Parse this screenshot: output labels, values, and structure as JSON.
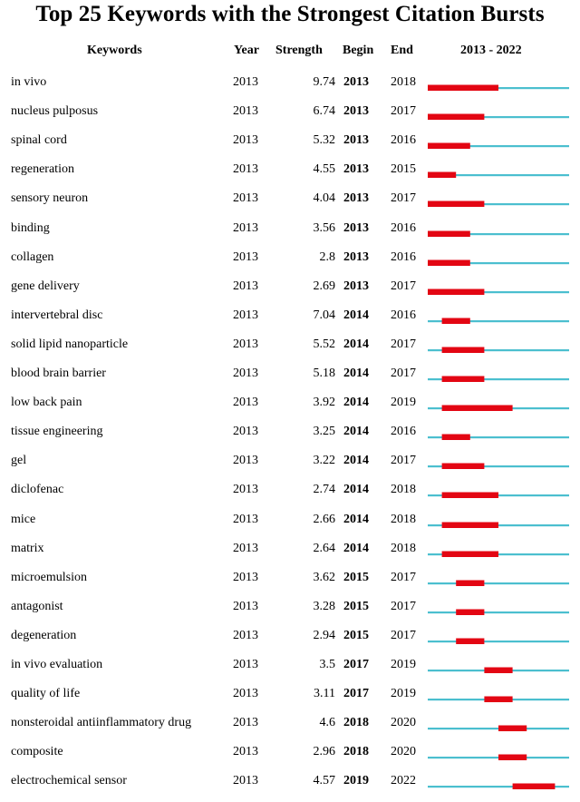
{
  "chart_data": {
    "type": "table",
    "title": "Top 25 Keywords with the Strongest Citation Bursts",
    "columns": [
      "Keywords",
      "Year",
      "Strength",
      "Begin",
      "End",
      "2013 - 2022"
    ],
    "range": [
      2013,
      2022
    ],
    "colors": {
      "burst": "#e30613",
      "baseline": "#4bbfcf"
    },
    "rows": [
      {
        "keyword": "in vivo",
        "year": "2013",
        "strength": "9.74",
        "begin": "2013",
        "end": "2018"
      },
      {
        "keyword": "nucleus pulposus",
        "year": "2013",
        "strength": "6.74",
        "begin": "2013",
        "end": "2017"
      },
      {
        "keyword": "spinal cord",
        "year": "2013",
        "strength": "5.32",
        "begin": "2013",
        "end": "2016"
      },
      {
        "keyword": "regeneration",
        "year": "2013",
        "strength": "4.55",
        "begin": "2013",
        "end": "2015"
      },
      {
        "keyword": "sensory neuron",
        "year": "2013",
        "strength": "4.04",
        "begin": "2013",
        "end": "2017"
      },
      {
        "keyword": "binding",
        "year": "2013",
        "strength": "3.56",
        "begin": "2013",
        "end": "2016"
      },
      {
        "keyword": "collagen",
        "year": "2013",
        "strength": "2.8",
        "begin": "2013",
        "end": "2016"
      },
      {
        "keyword": "gene delivery",
        "year": "2013",
        "strength": "2.69",
        "begin": "2013",
        "end": "2017"
      },
      {
        "keyword": "intervertebral disc",
        "year": "2013",
        "strength": "7.04",
        "begin": "2014",
        "end": "2016"
      },
      {
        "keyword": "solid lipid nanoparticle",
        "year": "2013",
        "strength": "5.52",
        "begin": "2014",
        "end": "2017"
      },
      {
        "keyword": "blood brain barrier",
        "year": "2013",
        "strength": "5.18",
        "begin": "2014",
        "end": "2017"
      },
      {
        "keyword": "low back pain",
        "year": "2013",
        "strength": "3.92",
        "begin": "2014",
        "end": "2019"
      },
      {
        "keyword": "tissue engineering",
        "year": "2013",
        "strength": "3.25",
        "begin": "2014",
        "end": "2016"
      },
      {
        "keyword": "gel",
        "year": "2013",
        "strength": "3.22",
        "begin": "2014",
        "end": "2017"
      },
      {
        "keyword": "diclofenac",
        "year": "2013",
        "strength": "2.74",
        "begin": "2014",
        "end": "2018"
      },
      {
        "keyword": "mice",
        "year": "2013",
        "strength": "2.66",
        "begin": "2014",
        "end": "2018"
      },
      {
        "keyword": "matrix",
        "year": "2013",
        "strength": "2.64",
        "begin": "2014",
        "end": "2018"
      },
      {
        "keyword": "microemulsion",
        "year": "2013",
        "strength": "3.62",
        "begin": "2015",
        "end": "2017"
      },
      {
        "keyword": "antagonist",
        "year": "2013",
        "strength": "3.28",
        "begin": "2015",
        "end": "2017"
      },
      {
        "keyword": "degeneration",
        "year": "2013",
        "strength": "2.94",
        "begin": "2015",
        "end": "2017"
      },
      {
        "keyword": "in vivo evaluation",
        "year": "2013",
        "strength": "3.5",
        "begin": "2017",
        "end": "2019"
      },
      {
        "keyword": "quality of life",
        "year": "2013",
        "strength": "3.11",
        "begin": "2017",
        "end": "2019"
      },
      {
        "keyword": "nonsteroidal antiinflammatory drug",
        "year": "2013",
        "strength": "4.6",
        "begin": "2018",
        "end": "2020"
      },
      {
        "keyword": "composite",
        "year": "2013",
        "strength": "2.96",
        "begin": "2018",
        "end": "2020"
      },
      {
        "keyword": "electrochemical sensor",
        "year": "2013",
        "strength": "4.57",
        "begin": "2019",
        "end": "2022"
      }
    ]
  }
}
